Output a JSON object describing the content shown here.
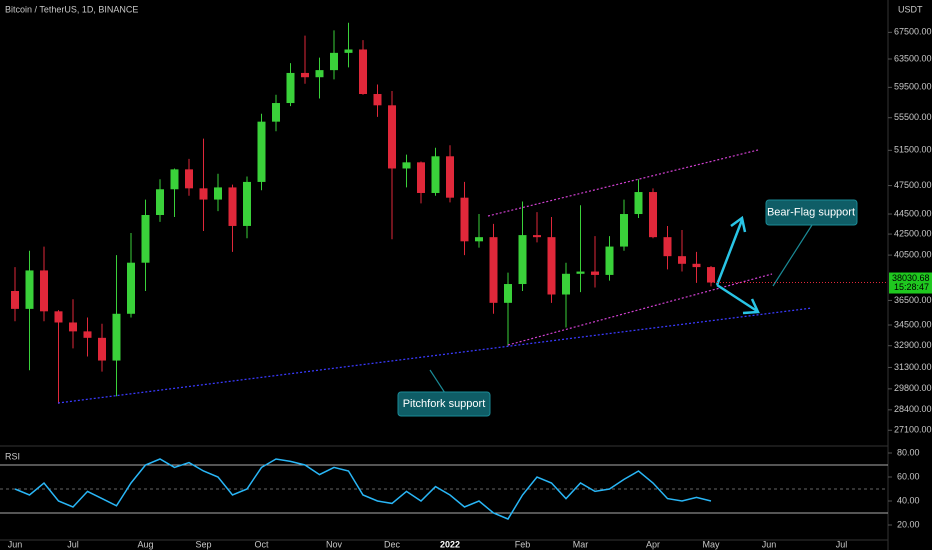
{
  "header": {
    "title": "Bitcoin / TetherUS, 1D, BINANCE",
    "currency": "USDT"
  },
  "chart_data": [
    {
      "type": "candlestick",
      "categories": [
        "Jun",
        null,
        null,
        null,
        "Jul",
        null,
        null,
        null,
        null,
        "Aug",
        null,
        null,
        null,
        "Sep",
        null,
        null,
        null,
        "Oct",
        null,
        null,
        null,
        null,
        "Nov",
        null,
        null,
        null,
        "Dec",
        null,
        null,
        null,
        "2022",
        null,
        null,
        null,
        null,
        "Feb",
        null,
        null,
        null,
        "Mar",
        null,
        null,
        null,
        null,
        "Apr",
        null,
        null,
        null,
        "May",
        null,
        null,
        null,
        "Jun",
        null,
        null,
        null,
        null,
        "Jul",
        null,
        null
      ],
      "ohlc": [
        [
          37300,
          39400,
          34800,
          35800
        ],
        [
          35800,
          40900,
          31100,
          39100
        ],
        [
          39100,
          41300,
          34800,
          35600
        ],
        [
          35600,
          35700,
          28800,
          34700
        ],
        [
          34700,
          36600,
          32700,
          34000
        ],
        [
          34000,
          35100,
          32100,
          33500
        ],
        [
          33500,
          34600,
          31000,
          31800
        ],
        [
          31800,
          40500,
          29300,
          35400
        ],
        [
          35400,
          42600,
          35100,
          39800
        ],
        [
          39800,
          46000,
          37300,
          44400
        ],
        [
          44400,
          48200,
          43700,
          47100
        ],
        [
          47100,
          49400,
          44200,
          49300
        ],
        [
          49300,
          50500,
          46400,
          47200
        ],
        [
          47200,
          52900,
          42800,
          46000
        ],
        [
          46000,
          48800,
          44800,
          47300
        ],
        [
          47300,
          47600,
          40800,
          43300
        ],
        [
          43300,
          48500,
          42100,
          47900
        ],
        [
          47900,
          56000,
          47000,
          55000
        ],
        [
          55000,
          58500,
          53800,
          57400
        ],
        [
          57400,
          62900,
          57000,
          61500
        ],
        [
          61500,
          67000,
          60000,
          60900
        ],
        [
          60900,
          63700,
          58000,
          61900
        ],
        [
          61900,
          67800,
          60600,
          64400
        ],
        [
          64400,
          69000,
          62300,
          64900
        ],
        [
          64900,
          66300,
          58500,
          58600
        ],
        [
          58600,
          59900,
          55600,
          57100
        ],
        [
          57100,
          59000,
          42000,
          49400
        ],
        [
          49400,
          51000,
          47300,
          50100
        ],
        [
          50100,
          50200,
          45600,
          46700
        ],
        [
          46700,
          51800,
          46400,
          50800
        ],
        [
          50800,
          52100,
          45700,
          46200
        ],
        [
          46200,
          47900,
          40500,
          41800
        ],
        [
          41800,
          44500,
          41200,
          42200
        ],
        [
          42200,
          43500,
          35400,
          36300
        ],
        [
          36300,
          38900,
          32900,
          37900
        ],
        [
          37900,
          45800,
          37300,
          42400
        ],
        [
          42400,
          44700,
          41700,
          42200
        ],
        [
          42200,
          44200,
          36300,
          37000
        ],
        [
          37000,
          39800,
          34300,
          38800
        ],
        [
          38800,
          45400,
          37200,
          39000
        ],
        [
          39000,
          42300,
          37600,
          38700
        ],
        [
          38700,
          42300,
          38200,
          41300
        ],
        [
          41300,
          46000,
          40900,
          44500
        ],
        [
          44500,
          48200,
          44100,
          46800
        ],
        [
          46800,
          47200,
          42100,
          42200
        ],
        [
          42200,
          43300,
          39200,
          40400
        ],
        [
          40400,
          42900,
          39000,
          39700
        ],
        [
          39700,
          40800,
          38000,
          39400
        ],
        [
          39400,
          39500,
          37700,
          38030.68
        ],
        null,
        null,
        null,
        null,
        null,
        null,
        null,
        null,
        null,
        null,
        null
      ],
      "up_color": "#3ad13a",
      "down_color": "#e0283a",
      "log_scale": true,
      "ylim": [
        26200,
        72700
      ],
      "yticks": [
        {
          "value": 27100,
          "label": "27100.00"
        },
        {
          "value": 28400,
          "label": "28400.00"
        },
        {
          "value": 29800,
          "label": "29800.00"
        },
        {
          "value": 31300,
          "label": "31300.00"
        },
        {
          "value": 32900,
          "label": "32900.00"
        },
        {
          "value": 34500,
          "label": "34500.00"
        },
        {
          "value": 36500,
          "label": "36500.00"
        },
        {
          "value": 40500,
          "label": "40500.00"
        },
        {
          "value": 42500,
          "label": "42500.00"
        },
        {
          "value": 44500,
          "label": "44500.00"
        },
        {
          "value": 47500,
          "label": "47500.00"
        },
        {
          "value": 51500,
          "label": "51500.00"
        },
        {
          "value": 55500,
          "label": "55500.00"
        },
        {
          "value": 59500,
          "label": "59500.00"
        },
        {
          "value": 63500,
          "label": "63500.00"
        },
        {
          "value": 67500,
          "label": "67500.00"
        }
      ],
      "countdown": "15:28:47",
      "annotations": [
        "Bear-Flag support",
        "Pitchfork support"
      ]
    },
    {
      "type": "line",
      "title": "RSI",
      "color": "#29b6f6",
      "values": [
        50,
        45,
        55,
        40,
        35,
        48,
        42,
        36,
        55,
        70,
        75,
        68,
        72,
        65,
        60,
        45,
        50,
        68,
        75,
        73,
        70,
        62,
        68,
        65,
        45,
        40,
        38,
        48,
        40,
        52,
        45,
        35,
        40,
        30,
        25,
        45,
        60,
        55,
        42,
        55,
        48,
        50,
        58,
        65,
        55,
        42,
        40,
        43,
        40,
        null,
        null,
        null,
        null,
        null,
        null,
        null,
        null,
        null,
        null,
        null
      ],
      "ylim": [
        7.5,
        85
      ],
      "yticks": [
        {
          "value": 20,
          "label": "20.00"
        },
        {
          "value": 40,
          "label": "40.00"
        },
        {
          "value": 60,
          "label": "60.00"
        },
        {
          "value": 80,
          "label": "80.00"
        }
      ],
      "levels": [
        30,
        50,
        70
      ]
    }
  ]
}
